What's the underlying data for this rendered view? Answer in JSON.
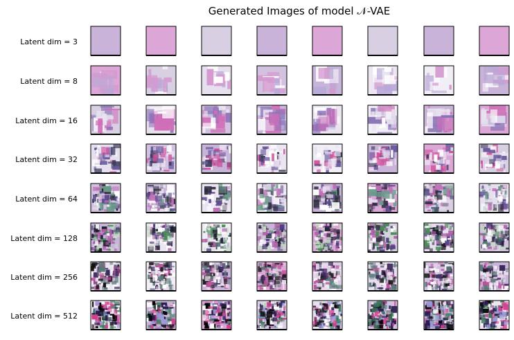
{
  "title": "Generated Images of model 𝒩-VAE",
  "rows": [
    {
      "label": "Latent dim = 3"
    },
    {
      "label": "Latent dim = 8"
    },
    {
      "label": "Latent dim = 16"
    },
    {
      "label": "Latent dim = 32"
    },
    {
      "label": "Latent dim = 64"
    },
    {
      "label": "Latent dim = 128"
    },
    {
      "label": "Latent dim = 256"
    },
    {
      "label": "Latent dim = 512"
    }
  ]
}
